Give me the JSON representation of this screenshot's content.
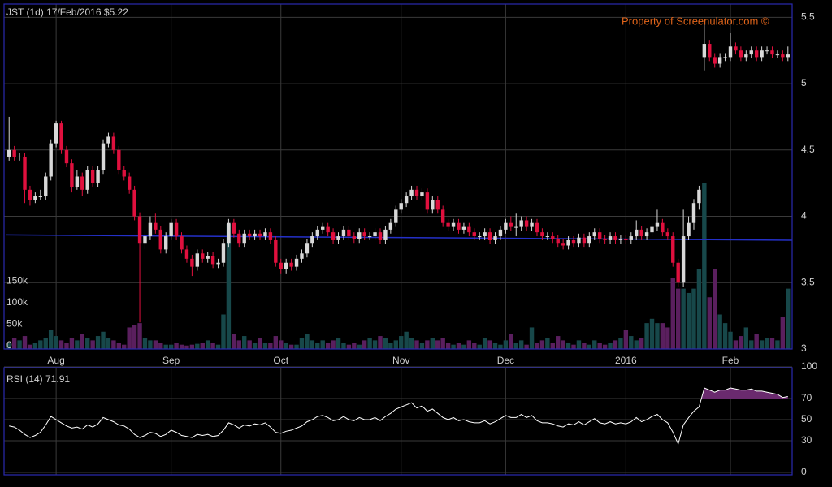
{
  "chart_data": [
    {
      "type": "candlestick",
      "title": "JST (1d) 17/Feb/2016 $5.22",
      "watermark": "Property of Screenulator.com ©",
      "open": [
        4.45,
        4.5,
        4.45,
        4.45,
        4.2,
        4.12,
        4.15,
        4.15,
        4.3,
        4.55,
        4.7,
        4.5,
        4.4,
        4.22,
        4.3,
        4.2,
        4.35,
        4.25,
        4.35,
        4.55,
        4.6,
        4.5,
        4.35,
        4.3,
        4.2,
        4.0,
        3.8,
        3.85,
        3.95,
        3.9,
        3.75,
        3.85,
        3.95,
        3.85,
        3.75,
        3.68,
        3.62,
        3.72,
        3.68,
        3.7,
        3.64,
        3.65,
        3.8,
        3.95,
        3.87,
        3.8,
        3.87,
        3.85,
        3.87,
        3.85,
        3.88,
        3.82,
        3.65,
        3.6,
        3.65,
        3.62,
        3.68,
        3.72,
        3.8,
        3.85,
        3.9,
        3.92,
        3.88,
        3.82,
        3.85,
        3.9,
        3.85,
        3.83,
        3.88,
        3.85,
        3.85,
        3.88,
        3.82,
        3.9,
        3.95,
        4.05,
        4.1,
        4.15,
        4.2,
        4.15,
        4.18,
        4.05,
        4.12,
        4.05,
        3.95,
        3.92,
        3.95,
        3.9,
        3.92,
        3.88,
        3.85,
        3.85,
        3.88,
        3.82,
        3.85,
        3.9,
        3.95,
        3.92,
        3.92,
        3.97,
        3.92,
        3.95,
        3.88,
        3.85,
        3.85,
        3.83,
        3.8,
        3.78,
        3.82,
        3.8,
        3.84,
        3.8,
        3.85,
        3.88,
        3.83,
        3.82,
        3.85,
        3.82,
        3.83,
        3.82,
        3.85,
        3.9,
        3.85,
        3.88,
        3.92,
        3.95,
        3.88,
        3.85,
        3.65,
        3.5,
        3.85,
        3.95,
        4.1,
        5.2,
        5.3,
        5.2,
        5.15,
        5.2,
        5.2,
        5.28,
        5.25,
        5.2,
        5.22,
        5.25,
        5.2,
        5.25,
        5.25,
        5.22,
        5.22,
        5.2
      ],
      "high": [
        4.75,
        4.53,
        4.48,
        4.48,
        4.23,
        4.18,
        4.2,
        4.33,
        4.58,
        4.72,
        4.72,
        4.53,
        4.43,
        4.35,
        4.33,
        4.38,
        4.38,
        4.38,
        4.58,
        4.63,
        4.63,
        4.53,
        4.38,
        4.33,
        4.23,
        4.03,
        3.9,
        4.0,
        4.02,
        3.93,
        3.88,
        3.98,
        3.98,
        3.88,
        3.78,
        3.71,
        3.75,
        3.75,
        3.73,
        3.73,
        3.68,
        3.83,
        3.98,
        3.98,
        3.9,
        3.9,
        3.9,
        3.9,
        3.9,
        3.91,
        3.91,
        3.85,
        3.68,
        3.68,
        3.68,
        3.71,
        3.75,
        3.83,
        3.88,
        3.93,
        3.95,
        3.95,
        3.91,
        3.88,
        3.93,
        3.93,
        3.88,
        3.91,
        3.91,
        3.88,
        3.91,
        3.91,
        3.93,
        3.98,
        4.08,
        4.13,
        4.18,
        4.23,
        4.23,
        4.21,
        4.21,
        4.15,
        4.15,
        4.08,
        3.98,
        3.98,
        3.98,
        3.95,
        3.95,
        3.91,
        3.88,
        3.91,
        3.91,
        3.88,
        3.93,
        3.98,
        4.0,
        4.02,
        4.0,
        4.0,
        3.98,
        3.98,
        3.91,
        3.88,
        3.88,
        3.86,
        3.83,
        3.85,
        3.85,
        3.87,
        3.87,
        3.88,
        3.91,
        3.91,
        3.86,
        3.88,
        3.88,
        3.86,
        3.86,
        3.88,
        3.97,
        3.93,
        3.91,
        3.95,
        4.05,
        3.98,
        3.91,
        3.88,
        3.68,
        4.05,
        4.0,
        4.13,
        4.23,
        5.45,
        5.33,
        5.23,
        5.23,
        5.23,
        5.38,
        5.31,
        5.28,
        5.25,
        5.28,
        5.28,
        5.28,
        5.28,
        5.28,
        5.25,
        5.25,
        5.28
      ],
      "low": [
        4.42,
        4.42,
        4.42,
        4.1,
        4.08,
        4.1,
        4.12,
        4.12,
        4.27,
        4.52,
        4.47,
        4.37,
        4.18,
        4.2,
        4.15,
        4.17,
        4.22,
        4.22,
        4.32,
        4.52,
        4.47,
        4.32,
        4.27,
        4.17,
        3.97,
        3.2,
        3.75,
        3.82,
        3.87,
        3.72,
        3.72,
        3.82,
        3.82,
        3.72,
        3.65,
        3.55,
        3.59,
        3.65,
        3.65,
        3.61,
        3.61,
        3.62,
        3.77,
        3.84,
        3.77,
        3.77,
        3.82,
        3.82,
        3.82,
        3.82,
        3.79,
        3.62,
        3.57,
        3.57,
        3.59,
        3.59,
        3.65,
        3.69,
        3.77,
        3.82,
        3.87,
        3.85,
        3.79,
        3.79,
        3.82,
        3.82,
        3.8,
        3.8,
        3.82,
        3.82,
        3.82,
        3.79,
        3.79,
        3.87,
        3.92,
        4.02,
        4.07,
        4.12,
        4.12,
        4.12,
        4.02,
        4.02,
        4.02,
        3.92,
        3.89,
        3.89,
        3.87,
        3.87,
        3.85,
        3.82,
        3.82,
        3.82,
        3.79,
        3.79,
        3.82,
        3.87,
        3.89,
        3.85,
        3.89,
        3.89,
        3.89,
        3.85,
        3.82,
        3.82,
        3.8,
        3.77,
        3.75,
        3.75,
        3.77,
        3.77,
        3.77,
        3.77,
        3.82,
        3.8,
        3.79,
        3.79,
        3.79,
        3.79,
        3.79,
        3.79,
        3.82,
        3.82,
        3.82,
        3.85,
        3.89,
        3.85,
        3.82,
        3.62,
        3.47,
        3.47,
        3.82,
        3.9,
        4.05,
        5.1,
        5.17,
        5.12,
        5.12,
        5.17,
        5.17,
        5.22,
        5.17,
        5.17,
        5.19,
        5.17,
        5.17,
        5.22,
        5.19,
        5.19,
        5.17,
        5.17
      ],
      "close": [
        4.5,
        4.45,
        4.45,
        4.2,
        4.12,
        4.15,
        4.15,
        4.3,
        4.55,
        4.7,
        4.5,
        4.4,
        4.22,
        4.3,
        4.2,
        4.35,
        4.25,
        4.35,
        4.55,
        4.6,
        4.5,
        4.35,
        4.3,
        4.2,
        4.0,
        3.8,
        3.85,
        3.95,
        3.9,
        3.75,
        3.85,
        3.95,
        3.85,
        3.75,
        3.68,
        3.62,
        3.72,
        3.68,
        3.7,
        3.64,
        3.65,
        3.8,
        3.95,
        3.87,
        3.8,
        3.87,
        3.85,
        3.87,
        3.85,
        3.88,
        3.82,
        3.65,
        3.6,
        3.65,
        3.62,
        3.68,
        3.72,
        3.8,
        3.85,
        3.9,
        3.92,
        3.88,
        3.82,
        3.85,
        3.9,
        3.85,
        3.83,
        3.88,
        3.85,
        3.85,
        3.88,
        3.82,
        3.9,
        3.95,
        4.05,
        4.1,
        4.15,
        4.2,
        4.15,
        4.18,
        4.05,
        4.12,
        4.05,
        3.95,
        3.92,
        3.95,
        3.9,
        3.92,
        3.88,
        3.85,
        3.85,
        3.88,
        3.82,
        3.85,
        3.9,
        3.95,
        3.92,
        3.92,
        3.97,
        3.92,
        3.95,
        3.88,
        3.85,
        3.85,
        3.83,
        3.8,
        3.78,
        3.82,
        3.8,
        3.84,
        3.8,
        3.85,
        3.88,
        3.83,
        3.82,
        3.85,
        3.82,
        3.83,
        3.82,
        3.85,
        3.9,
        3.85,
        3.88,
        3.92,
        3.95,
        3.88,
        3.85,
        3.65,
        3.5,
        3.85,
        3.95,
        4.1,
        4.2,
        5.3,
        5.2,
        5.15,
        5.2,
        5.2,
        5.28,
        5.25,
        5.2,
        5.22,
        5.25,
        5.2,
        5.25,
        5.25,
        5.22,
        5.22,
        5.2,
        5.22
      ],
      "volume": [
        15000,
        25000,
        20000,
        30000,
        10000,
        15000,
        20000,
        25000,
        45000,
        30000,
        20000,
        15000,
        25000,
        20000,
        35000,
        25000,
        20000,
        30000,
        40000,
        25000,
        20000,
        15000,
        10000,
        50000,
        55000,
        60000,
        25000,
        20000,
        20000,
        15000,
        10000,
        10000,
        15000,
        10000,
        8000,
        10000,
        12000,
        15000,
        20000,
        15000,
        10000,
        80000,
        290000,
        35000,
        20000,
        30000,
        20000,
        15000,
        25000,
        15000,
        15000,
        30000,
        20000,
        15000,
        10000,
        10000,
        25000,
        35000,
        20000,
        15000,
        20000,
        15000,
        20000,
        25000,
        15000,
        10000,
        15000,
        10000,
        20000,
        25000,
        20000,
        30000,
        25000,
        15000,
        20000,
        30000,
        40000,
        25000,
        20000,
        15000,
        20000,
        25000,
        20000,
        25000,
        15000,
        10000,
        15000,
        10000,
        20000,
        15000,
        10000,
        25000,
        20000,
        15000,
        10000,
        20000,
        35000,
        15000,
        20000,
        10000,
        50000,
        15000,
        20000,
        25000,
        15000,
        30000,
        20000,
        15000,
        10000,
        20000,
        15000,
        10000,
        20000,
        15000,
        10000,
        15000,
        20000,
        25000,
        45000,
        30000,
        20000,
        25000,
        60000,
        70000,
        60000,
        60000,
        50000,
        165000,
        140000,
        140000,
        130000,
        140000,
        185000,
        385000,
        120000,
        185000,
        80000,
        60000,
        40000,
        20000,
        30000,
        50000,
        20000,
        35000,
        20000,
        25000,
        25000,
        20000,
        75000,
        140000
      ],
      "reference_line": [
        3.86,
        3.82
      ],
      "xticks": [
        {
          "value": 9,
          "label": "Aug"
        },
        {
          "value": 31,
          "label": "Sep"
        },
        {
          "value": 52,
          "label": "Oct"
        },
        {
          "value": 75,
          "label": "Nov"
        },
        {
          "value": 95,
          "label": "Dec"
        },
        {
          "value": 118,
          "label": "2016"
        },
        {
          "value": 138,
          "label": "Feb"
        }
      ],
      "ylim": [
        3,
        5.6
      ],
      "yticks": [
        3,
        3.5,
        4,
        4.5,
        5,
        5.5
      ],
      "vlim": [
        0,
        800000
      ],
      "vticks": [
        {
          "value": 0,
          "label": "0"
        },
        {
          "value": 50000,
          "label": "50k"
        },
        {
          "value": 100000,
          "label": "100k"
        },
        {
          "value": 150000,
          "label": "150k"
        }
      ],
      "up_color": "#d8d8d8",
      "down_color": "#e0103e",
      "volume_up_color": "#17484a",
      "volume_down_color": "#5a1f5e",
      "reference_color": "#2430c8",
      "grid": true
    },
    {
      "type": "line",
      "title": "RSI (14) 71.91",
      "values": [
        44,
        43,
        40,
        36,
        33,
        35,
        38,
        45,
        53,
        50,
        47,
        44,
        42,
        43,
        41,
        45,
        43,
        46,
        52,
        50,
        48,
        45,
        44,
        41,
        36,
        33,
        35,
        38,
        37,
        34,
        36,
        40,
        38,
        35,
        34,
        33,
        36,
        35,
        36,
        34,
        35,
        40,
        47,
        45,
        42,
        45,
        44,
        46,
        45,
        47,
        43,
        38,
        37,
        39,
        40,
        42,
        44,
        48,
        50,
        53,
        54,
        52,
        49,
        50,
        53,
        50,
        49,
        52,
        50,
        50,
        52,
        49,
        53,
        56,
        60,
        62,
        64,
        66,
        61,
        63,
        58,
        60,
        56,
        52,
        50,
        52,
        49,
        50,
        48,
        47,
        47,
        49,
        46,
        48,
        51,
        54,
        52,
        52,
        55,
        52,
        54,
        49,
        47,
        47,
        46,
        44,
        43,
        46,
        45,
        48,
        45,
        48,
        51,
        47,
        46,
        48,
        46,
        47,
        46,
        48,
        52,
        48,
        50,
        53,
        55,
        50,
        47,
        38,
        27,
        45,
        52,
        58,
        62,
        80,
        78,
        76,
        78,
        78,
        80,
        79,
        78,
        78,
        79,
        77,
        77,
        76,
        75,
        74,
        71,
        71.91
      ],
      "ylim": [
        0,
        100
      ],
      "yticks": [
        0,
        30,
        50,
        70,
        100
      ],
      "color": "#ffffff",
      "fill_above": 70,
      "fill_color": "#6a2a6e",
      "grid": true
    }
  ]
}
